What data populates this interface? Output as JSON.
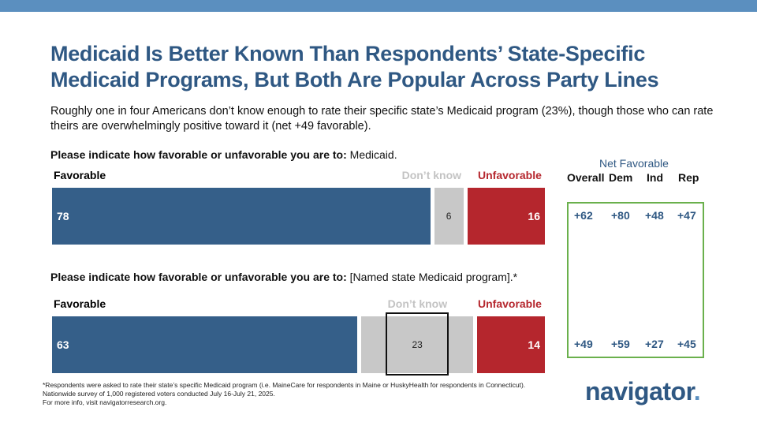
{
  "title": "Medicaid Is Better Known Than Respondents’ State-Specific Medicaid Programs, But Both Are Popular Across Party Lines",
  "subtitle": "Roughly one in four Americans don’t know enough to rate their specific state’s Medicaid program (23%), though those who can rate theirs are overwhelmingly positive toward it (net +49 favorable).",
  "colors": {
    "favorable": "#355f89",
    "dont_know": "#c8c8c8",
    "unfavorable": "#b5262d",
    "net_box": "#6ab04c",
    "title": "#2f5883"
  },
  "chart_data": {
    "type": "bar",
    "orientation": "horizontal-stacked",
    "series_names": [
      "Favorable",
      "Don’t know",
      "Unfavorable"
    ],
    "questions": [
      {
        "prompt_bold": "Please indicate how favorable or unfavorable you are to:",
        "prompt_rest": " Medicaid.",
        "favorable": 78,
        "dont_know": 6,
        "unfavorable": 16,
        "net": {
          "overall": "+62",
          "dem": "+80",
          "ind": "+48",
          "rep": "+47"
        }
      },
      {
        "prompt_bold": "Please indicate how favorable or unfavorable you are to:",
        "prompt_rest": " [Named state Medicaid program].*",
        "favorable": 63,
        "dont_know": 23,
        "unfavorable": 14,
        "dont_know_highlighted": true,
        "net": {
          "overall": "+49",
          "dem": "+59",
          "ind": "+27",
          "rep": "+45"
        }
      }
    ],
    "net_favorable": {
      "title": "Net Favorable",
      "columns": [
        "Overall",
        "Dem",
        "Ind",
        "Rep"
      ]
    }
  },
  "footnote": {
    "line1": "*Respondents were asked to rate their state’s specific Medicaid program (i.e. MaineCare for respondents in Maine or HuskyHealth for respondents in Connecticut). Nationwide survey of 1,000 registered voters conducted July 16-July 21, 2025.",
    "line2": "For more info, visit navigatorresearch.org."
  },
  "logo": {
    "text": "navigator",
    "dot": "."
  }
}
